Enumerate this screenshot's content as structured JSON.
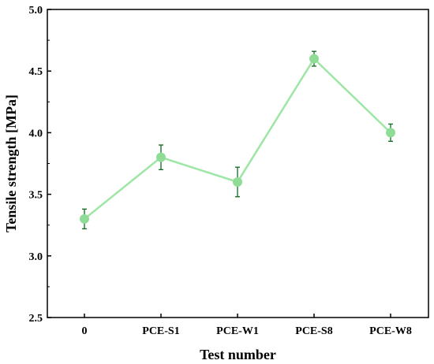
{
  "chart_data": {
    "type": "line",
    "xlabel": "Test number",
    "ylabel": "Tensile strength [MPa]",
    "categories": [
      "0",
      "PCE-S1",
      "PCE-W1",
      "PCE-S8",
      "PCE-W8"
    ],
    "series": [
      {
        "values": [
          3.3,
          3.8,
          3.6,
          4.6,
          4.0
        ],
        "error_low": [
          3.22,
          3.7,
          3.48,
          4.54,
          3.93
        ],
        "error_high": [
          3.38,
          3.9,
          3.72,
          4.66,
          4.07
        ]
      }
    ],
    "ylim": [
      2.5,
      5.0
    ],
    "yticks": [
      "2.5",
      "3.0",
      "3.5",
      "4.0",
      "4.5",
      "5.0"
    ],
    "grid": false,
    "colors": {
      "line": "#9ee6a6",
      "marker": "#8fdc97",
      "errorbar": "#0f6a1f",
      "axis": "#000000"
    }
  }
}
